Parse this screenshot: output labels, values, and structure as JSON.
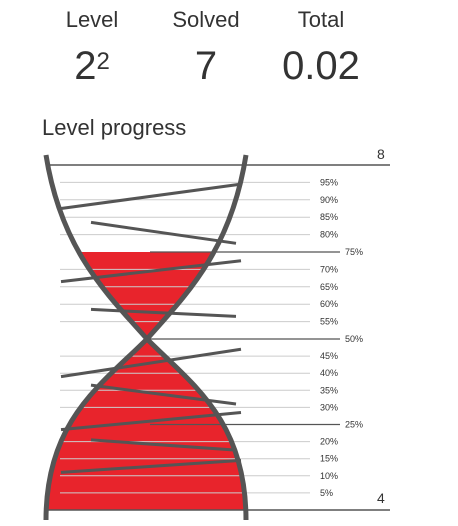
{
  "stats": {
    "level": {
      "label": "Level",
      "base": "2",
      "exponent": "2"
    },
    "solved": {
      "label": "Solved",
      "value": "7"
    },
    "total": {
      "label": "Total",
      "value": "0.02"
    }
  },
  "progress": {
    "title": "Level progress",
    "upper_bound": "8",
    "lower_bound": "4",
    "fill_fraction": 0.75,
    "colors": {
      "fill": "#e8242c",
      "frame": "#555555",
      "grid": "#cccccc"
    },
    "ticks": [
      {
        "label": "95%",
        "major": false
      },
      {
        "label": "90%",
        "major": false
      },
      {
        "label": "85%",
        "major": false
      },
      {
        "label": "80%",
        "major": false
      },
      {
        "label": "75%",
        "major": true
      },
      {
        "label": "70%",
        "major": false
      },
      {
        "label": "65%",
        "major": false
      },
      {
        "label": "60%",
        "major": false
      },
      {
        "label": "55%",
        "major": false
      },
      {
        "label": "50%",
        "major": true
      },
      {
        "label": "45%",
        "major": false
      },
      {
        "label": "40%",
        "major": false
      },
      {
        "label": "35%",
        "major": false
      },
      {
        "label": "30%",
        "major": false
      },
      {
        "label": "25%",
        "major": true
      },
      {
        "label": "20%",
        "major": false
      },
      {
        "label": "15%",
        "major": false
      },
      {
        "label": "10%",
        "major": false
      },
      {
        "label": "5%",
        "major": false
      }
    ]
  }
}
